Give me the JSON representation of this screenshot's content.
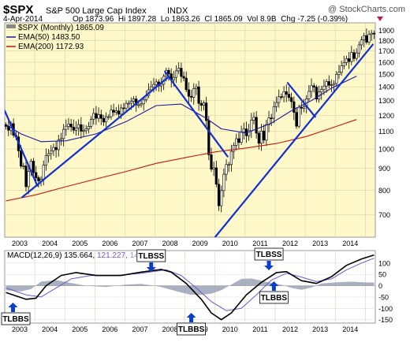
{
  "header": {
    "symbol": "$SPX",
    "name": "S&P 500 Large Cap Index",
    "exchange": "INDX",
    "watermark": "@ StockCharts.com",
    "date": "4-Apr-2014",
    "ohlc": "Op 1873.96  Hi 1897.28  Lo 1863.26  Cl 1865.09  Vol 8.9B  Chg -7.25 (-0.39%)"
  },
  "legend": {
    "price": "$SPX (Monthly) 1865.09",
    "ema50": "EMA(50) 1483.50",
    "ema200": "EMA(200) 1172.93"
  },
  "macd_legend": {
    "prefix": "MACD(12,26,9) ",
    "macd": "135.664",
    "signal": "121.227",
    "hist": "14.437"
  },
  "colors": {
    "plot_bg": "#fff8c8",
    "ema50": "#1a1aa0",
    "ema200": "#c01818",
    "trendline": "#1030d0",
    "callout": "#0a3ec8",
    "hist": "#8c96aa",
    "signal": "#6a5ad0"
  },
  "annotations": [
    {
      "text": "TLBBS",
      "arrow": "up",
      "month": 2.8
    },
    {
      "text": "TLBSS",
      "arrow": "down",
      "month": 58
    },
    {
      "text": "TLBBS",
      "arrow": "up",
      "month": 74
    },
    {
      "text": "TLBSS",
      "arrow": "down",
      "month": 105
    },
    {
      "text": "TLBBS",
      "arrow": "up",
      "month": 107
    }
  ],
  "chart_data": [
    {
      "type": "line",
      "title": "$SPX S&P 500 Large Cap Index INDX",
      "y_scale": "log",
      "ylim": [
        620,
        1980
      ],
      "y_ticks": [
        700,
        800,
        900,
        1000,
        1100,
        1200,
        1300,
        1400,
        1500,
        1600,
        1700,
        1800,
        1900
      ],
      "x_labels": [
        "2003",
        "2004",
        "2005",
        "2006",
        "2007",
        "2008",
        "2009",
        "2010",
        "2011",
        "2012",
        "2013",
        "2014"
      ],
      "x_range": [
        "2002-01",
        "2014-04"
      ],
      "series": [
        {
          "name": "$SPX (Monthly)",
          "months_from": "2002-01",
          "values": [
            1130,
            1107,
            1147,
            1077,
            1067,
            990,
            911,
            912,
            815,
            885,
            936,
            880,
            856,
            841,
            848,
            916,
            964,
            975,
            990,
            1008,
            996,
            1050,
            1058,
            1112,
            1131,
            1145,
            1126,
            1107,
            1121,
            1141,
            1101,
            1104,
            1115,
            1130,
            1174,
            1212,
            1181,
            1204,
            1180,
            1157,
            1191,
            1191,
            1234,
            1220,
            1229,
            1207,
            1249,
            1248,
            1280,
            1281,
            1295,
            1311,
            1270,
            1270,
            1277,
            1304,
            1336,
            1378,
            1400,
            1418,
            1438,
            1407,
            1420,
            1482,
            1531,
            1503,
            1455,
            1474,
            1527,
            1549,
            1481,
            1468,
            1378,
            1330,
            1323,
            1386,
            1400,
            1280,
            1267,
            1283,
            1166,
            969,
            896,
            903,
            826,
            735,
            798,
            872,
            919,
            919,
            987,
            1020,
            1057,
            1036,
            1096,
            1115,
            1074,
            1104,
            1169,
            1187,
            1089,
            1031,
            1102,
            1049,
            1141,
            1183,
            1181,
            1258,
            1286,
            1327,
            1326,
            1364,
            1345,
            1321,
            1292,
            1219,
            1131,
            1253,
            1247,
            1258,
            1312,
            1366,
            1408,
            1398,
            1310,
            1362,
            1379,
            1406,
            1441,
            1412,
            1416,
            1426,
            1498,
            1515,
            1569,
            1597,
            1631,
            1606,
            1686,
            1633,
            1682,
            1757,
            1806,
            1848,
            1783,
            1859,
            1872,
            1865
          ]
        },
        {
          "name": "EMA(50)",
          "points": [
            [
              0,
              1140
            ],
            [
              6,
              1085
            ],
            [
              14,
              1040
            ],
            [
              24,
              1045
            ],
            [
              36,
              1085
            ],
            [
              48,
              1160
            ],
            [
              60,
              1265
            ],
            [
              70,
              1275
            ],
            [
              80,
              1180
            ],
            [
              86,
              1115
            ],
            [
              96,
              1090
            ],
            [
              106,
              1150
            ],
            [
              114,
              1230
            ],
            [
              122,
              1300
            ],
            [
              130,
              1390
            ],
            [
              140,
              1483.5
            ]
          ]
        },
        {
          "name": "EMA(200)",
          "points": [
            [
              0,
              755
            ],
            [
              12,
              780
            ],
            [
              24,
              815
            ],
            [
              36,
              850
            ],
            [
              48,
              885
            ],
            [
              60,
              925
            ],
            [
              72,
              955
            ],
            [
              84,
              985
            ],
            [
              96,
              1005
            ],
            [
              108,
              1030
            ],
            [
              120,
              1070
            ],
            [
              130,
              1120
            ],
            [
              140,
              1172.93
            ]
          ]
        }
      ],
      "trendlines": [
        {
          "from": [
            0,
            1230
          ],
          "to": [
            13,
            820
          ]
        },
        {
          "from": [
            7,
            770
          ],
          "to": [
            65,
            1470
          ]
        },
        {
          "from": [
            64,
            1520
          ],
          "to": [
            89,
            960
          ]
        },
        {
          "from": [
            84,
            620
          ],
          "to": [
            147,
            1760
          ]
        },
        {
          "from": [
            113,
            1430
          ],
          "to": [
            124,
            1190
          ]
        }
      ]
    },
    {
      "type": "line",
      "title": "MACD(12,26,9) 135.664, 121.227, 14.437",
      "ylim": [
        -165,
        155
      ],
      "y_ticks": [
        -150,
        -100,
        -50,
        0,
        50,
        100
      ],
      "x_labels": [
        "2003",
        "2004",
        "2005",
        "2006",
        "2007",
        "2008",
        "2009",
        "2010",
        "2011",
        "2012",
        "2013",
        "2014"
      ],
      "series": [
        {
          "name": "MACD",
          "points": [
            [
              0,
              -30
            ],
            [
              8,
              -60
            ],
            [
              12,
              -55
            ],
            [
              16,
              0
            ],
            [
              22,
              45
            ],
            [
              28,
              58
            ],
            [
              36,
              45
            ],
            [
              46,
              45
            ],
            [
              54,
              60
            ],
            [
              62,
              72
            ],
            [
              66,
              60
            ],
            [
              72,
              10
            ],
            [
              78,
              -60
            ],
            [
              82,
              -120
            ],
            [
              86,
              -150
            ],
            [
              90,
              -120
            ],
            [
              96,
              -40
            ],
            [
              102,
              15
            ],
            [
              108,
              58
            ],
            [
              112,
              62
            ],
            [
              118,
              22
            ],
            [
              124,
              10
            ],
            [
              130,
              40
            ],
            [
              136,
              90
            ],
            [
              142,
              118
            ],
            [
              147,
              135.664
            ]
          ]
        },
        {
          "name": "Signal",
          "points": [
            [
              0,
              -10
            ],
            [
              8,
              -40
            ],
            [
              14,
              -50
            ],
            [
              20,
              -10
            ],
            [
              26,
              30
            ],
            [
              34,
              45
            ],
            [
              44,
              45
            ],
            [
              54,
              55
            ],
            [
              64,
              70
            ],
            [
              70,
              45
            ],
            [
              76,
              -10
            ],
            [
              82,
              -70
            ],
            [
              88,
              -110
            ],
            [
              94,
              -100
            ],
            [
              100,
              -40
            ],
            [
              106,
              25
            ],
            [
              112,
              55
            ],
            [
              118,
              38
            ],
            [
              124,
              18
            ],
            [
              130,
              30
            ],
            [
              136,
              70
            ],
            [
              142,
              100
            ],
            [
              147,
              121.227
            ]
          ]
        },
        {
          "name": "Histogram",
          "points": [
            [
              0,
              -20
            ],
            [
              6,
              -25
            ],
            [
              10,
              -15
            ],
            [
              14,
              18
            ],
            [
              20,
              25
            ],
            [
              26,
              12
            ],
            [
              32,
              0
            ],
            [
              40,
              -6
            ],
            [
              48,
              5
            ],
            [
              54,
              8
            ],
            [
              58,
              2
            ],
            [
              62,
              -6
            ],
            [
              66,
              -18
            ],
            [
              70,
              -30
            ],
            [
              74,
              -40
            ],
            [
              78,
              -40
            ],
            [
              82,
              -35
            ],
            [
              86,
              -20
            ],
            [
              90,
              5
            ],
            [
              94,
              30
            ],
            [
              98,
              32
            ],
            [
              102,
              22
            ],
            [
              106,
              12
            ],
            [
              110,
              4
            ],
            [
              114,
              -10
            ],
            [
              118,
              -18
            ],
            [
              122,
              -8
            ],
            [
              126,
              10
            ],
            [
              132,
              15
            ],
            [
              138,
              18
            ],
            [
              144,
              14
            ],
            [
              147,
              14.437
            ]
          ]
        }
      ]
    }
  ]
}
